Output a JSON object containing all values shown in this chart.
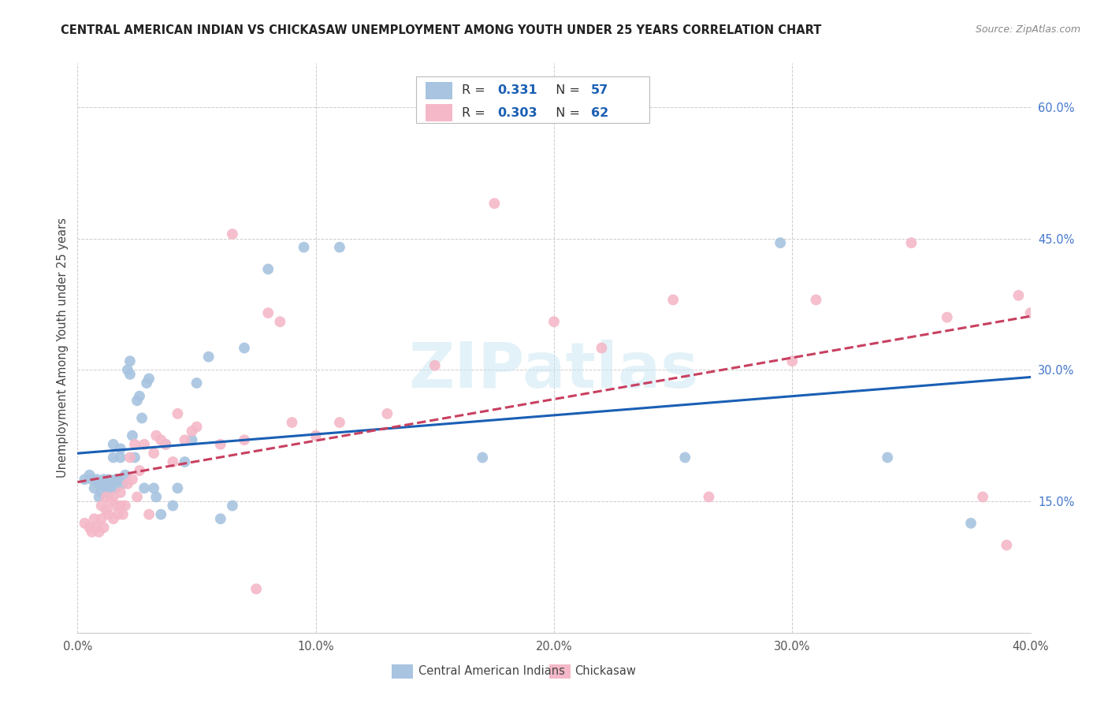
{
  "title": "CENTRAL AMERICAN INDIAN VS CHICKASAW UNEMPLOYMENT AMONG YOUTH UNDER 25 YEARS CORRELATION CHART",
  "source": "Source: ZipAtlas.com",
  "ylabel": "Unemployment Among Youth under 25 years",
  "xlim": [
    0.0,
    0.4
  ],
  "ylim": [
    0.0,
    0.65
  ],
  "blue_R": 0.331,
  "blue_N": 57,
  "pink_R": 0.303,
  "pink_N": 62,
  "blue_color": "#a8c4e0",
  "pink_color": "#f4b8c8",
  "blue_line_color": "#1a5fb4",
  "pink_line_color": "#c84060",
  "watermark": "ZIPatlas",
  "legend_blue_label": "Central American Indians",
  "legend_pink_label": "Chickasaw",
  "blue_scatter_x": [
    0.003,
    0.005,
    0.006,
    0.007,
    0.008,
    0.009,
    0.009,
    0.01,
    0.01,
    0.011,
    0.011,
    0.012,
    0.012,
    0.013,
    0.013,
    0.014,
    0.015,
    0.015,
    0.016,
    0.016,
    0.017,
    0.018,
    0.018,
    0.019,
    0.02,
    0.021,
    0.022,
    0.022,
    0.023,
    0.024,
    0.025,
    0.026,
    0.027,
    0.028,
    0.029,
    0.03,
    0.032,
    0.033,
    0.035,
    0.037,
    0.04,
    0.042,
    0.045,
    0.048,
    0.05,
    0.055,
    0.06,
    0.065,
    0.07,
    0.08,
    0.095,
    0.11,
    0.17,
    0.255,
    0.295,
    0.34,
    0.375
  ],
  "blue_scatter_y": [
    0.175,
    0.18,
    0.175,
    0.165,
    0.175,
    0.155,
    0.17,
    0.16,
    0.17,
    0.17,
    0.175,
    0.165,
    0.17,
    0.16,
    0.175,
    0.165,
    0.2,
    0.215,
    0.165,
    0.175,
    0.175,
    0.2,
    0.21,
    0.17,
    0.18,
    0.3,
    0.295,
    0.31,
    0.225,
    0.2,
    0.265,
    0.27,
    0.245,
    0.165,
    0.285,
    0.29,
    0.165,
    0.155,
    0.135,
    0.215,
    0.145,
    0.165,
    0.195,
    0.22,
    0.285,
    0.315,
    0.13,
    0.145,
    0.325,
    0.415,
    0.44,
    0.44,
    0.2,
    0.2,
    0.445,
    0.2,
    0.125
  ],
  "pink_scatter_x": [
    0.003,
    0.005,
    0.006,
    0.007,
    0.008,
    0.009,
    0.01,
    0.01,
    0.011,
    0.012,
    0.012,
    0.013,
    0.014,
    0.015,
    0.015,
    0.016,
    0.017,
    0.018,
    0.018,
    0.019,
    0.02,
    0.021,
    0.022,
    0.023,
    0.024,
    0.025,
    0.026,
    0.028,
    0.03,
    0.032,
    0.033,
    0.035,
    0.037,
    0.04,
    0.042,
    0.045,
    0.048,
    0.05,
    0.06,
    0.065,
    0.07,
    0.075,
    0.08,
    0.085,
    0.09,
    0.1,
    0.11,
    0.13,
    0.15,
    0.175,
    0.2,
    0.22,
    0.25,
    0.265,
    0.3,
    0.31,
    0.35,
    0.365,
    0.38,
    0.39,
    0.395,
    0.4
  ],
  "pink_scatter_y": [
    0.125,
    0.12,
    0.115,
    0.13,
    0.12,
    0.115,
    0.13,
    0.145,
    0.12,
    0.14,
    0.155,
    0.135,
    0.15,
    0.13,
    0.155,
    0.145,
    0.135,
    0.145,
    0.16,
    0.135,
    0.145,
    0.17,
    0.2,
    0.175,
    0.215,
    0.155,
    0.185,
    0.215,
    0.135,
    0.205,
    0.225,
    0.22,
    0.215,
    0.195,
    0.25,
    0.22,
    0.23,
    0.235,
    0.215,
    0.455,
    0.22,
    0.05,
    0.365,
    0.355,
    0.24,
    0.225,
    0.24,
    0.25,
    0.305,
    0.49,
    0.355,
    0.325,
    0.38,
    0.155,
    0.31,
    0.38,
    0.445,
    0.36,
    0.155,
    0.1,
    0.385,
    0.365
  ]
}
